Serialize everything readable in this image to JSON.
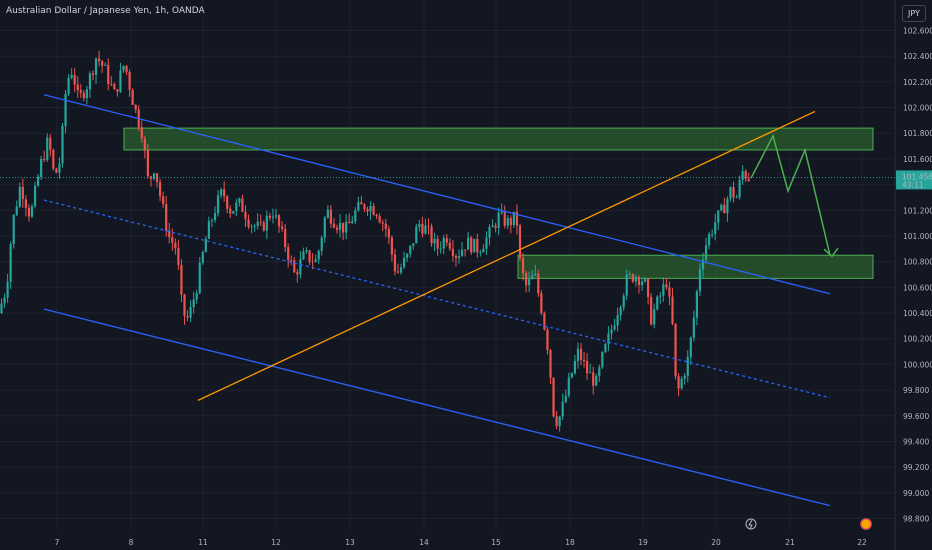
{
  "header": {
    "title": "Australian Dollar / Japanese Yen, 1h, OANDA",
    "currency": "JPY"
  },
  "price_tag": {
    "price": "101.456",
    "countdown": "43:11",
    "color": "#26a69a"
  },
  "colors": {
    "up": "#26a69a",
    "down": "#ef5350",
    "channel": "#2962ff",
    "trendline": "#ff9800",
    "zone_fill": "#2b5f2f",
    "zone_border": "#4caf50",
    "arrow": "#4caf50",
    "background": "#131722",
    "grid": "#1e222d",
    "axis_text": "#b2b5be"
  },
  "chart_data": {
    "type": "candlestick",
    "title": "Australian Dollar / Japanese Yen, 1h, OANDA",
    "y_axis": {
      "position": "right",
      "range": [
        98.7,
        102.75
      ],
      "ticks": [
        "102.600",
        "102.400",
        "102.200",
        "102.000",
        "101.800",
        "101.600",
        "101.400",
        "101.200",
        "101.000",
        "100.800",
        "100.600",
        "100.400",
        "100.200",
        "100.000",
        "99.800",
        "99.600",
        "99.400",
        "99.200",
        "99.000",
        "98.800"
      ]
    },
    "x_axis": {
      "ticks": [
        "7",
        "8",
        "11",
        "12",
        "13",
        "14",
        "15",
        "18",
        "19",
        "20",
        "21",
        "22"
      ]
    },
    "price_path": [
      [
        0,
        100.4
      ],
      [
        8,
        100.6
      ],
      [
        14,
        101.1
      ],
      [
        22,
        101.4
      ],
      [
        32,
        101.15
      ],
      [
        42,
        101.55
      ],
      [
        50,
        101.75
      ],
      [
        56,
        101.45
      ],
      [
        62,
        101.6
      ],
      [
        68,
        102.2
      ],
      [
        74,
        102.3
      ],
      [
        80,
        102.05
      ],
      [
        90,
        102.2
      ],
      [
        98,
        102.4
      ],
      [
        106,
        102.3
      ],
      [
        116,
        102.1
      ],
      [
        126,
        102.35
      ],
      [
        136,
        102.0
      ],
      [
        144,
        101.8
      ],
      [
        150,
        101.4
      ],
      [
        156,
        101.55
      ],
      [
        162,
        101.3
      ],
      [
        170,
        101.0
      ],
      [
        178,
        100.9
      ],
      [
        184,
        100.4
      ],
      [
        190,
        100.35
      ],
      [
        198,
        100.6
      ],
      [
        208,
        101.0
      ],
      [
        216,
        101.2
      ],
      [
        224,
        101.35
      ],
      [
        232,
        101.2
      ],
      [
        242,
        101.25
      ],
      [
        252,
        101.1
      ],
      [
        262,
        101.05
      ],
      [
        274,
        101.2
      ],
      [
        286,
        100.95
      ],
      [
        296,
        100.7
      ],
      [
        306,
        100.85
      ],
      [
        318,
        100.8
      ],
      [
        328,
        101.2
      ],
      [
        338,
        101.1
      ],
      [
        348,
        101.05
      ],
      [
        358,
        101.2
      ],
      [
        368,
        101.25
      ],
      [
        378,
        101.2
      ],
      [
        388,
        101.05
      ],
      [
        398,
        100.7
      ],
      [
        410,
        100.85
      ],
      [
        420,
        101.1
      ],
      [
        428,
        101.05
      ],
      [
        438,
        100.9
      ],
      [
        448,
        101.0
      ],
      [
        458,
        100.85
      ],
      [
        468,
        100.95
      ],
      [
        480,
        100.9
      ],
      [
        490,
        101.0
      ],
      [
        500,
        101.15
      ],
      [
        510,
        101.1
      ],
      [
        518,
        101.15
      ],
      [
        522,
        100.75
      ],
      [
        528,
        100.6
      ],
      [
        536,
        100.7
      ],
      [
        544,
        100.4
      ],
      [
        550,
        100.1
      ],
      [
        556,
        99.55
      ],
      [
        562,
        99.6
      ],
      [
        572,
        99.9
      ],
      [
        580,
        100.1
      ],
      [
        588,
        99.95
      ],
      [
        598,
        99.85
      ],
      [
        604,
        100.05
      ],
      [
        612,
        100.25
      ],
      [
        620,
        100.45
      ],
      [
        628,
        100.65
      ],
      [
        636,
        100.7
      ],
      [
        646,
        100.65
      ],
      [
        652,
        100.35
      ],
      [
        660,
        100.5
      ],
      [
        668,
        100.65
      ],
      [
        674,
        100.3
      ],
      [
        678,
        99.75
      ],
      [
        684,
        99.9
      ],
      [
        690,
        100.05
      ],
      [
        696,
        100.4
      ],
      [
        702,
        100.8
      ],
      [
        708,
        100.95
      ],
      [
        716,
        101.1
      ],
      [
        724,
        101.2
      ],
      [
        732,
        101.35
      ],
      [
        738,
        101.3
      ],
      [
        744,
        101.5
      ],
      [
        750,
        101.46
      ]
    ],
    "series": [
      {
        "name": "",
        "kind": "channel_upper",
        "color": "#2962ff",
        "points": [
          [
            44,
            102.1
          ],
          [
            830,
            100.55
          ]
        ]
      },
      {
        "name": "",
        "kind": "channel_mid",
        "color": "#2962ff",
        "dashed": true,
        "points": [
          [
            44,
            101.28
          ],
          [
            830,
            99.74
          ]
        ]
      },
      {
        "name": "",
        "kind": "channel_lower",
        "color": "#2962ff",
        "points": [
          [
            44,
            100.43
          ],
          [
            830,
            98.9
          ]
        ]
      },
      {
        "name": "",
        "kind": "trendline",
        "color": "#ff9800",
        "points": [
          [
            198,
            99.72
          ],
          [
            815,
            101.97
          ]
        ]
      },
      {
        "name": "",
        "kind": "zone_upper",
        "color": "#4caf50",
        "x_range": [
          124,
          873
        ],
        "y_range": [
          101.67,
          101.84
        ]
      },
      {
        "name": "",
        "kind": "zone_lower",
        "color": "#4caf50",
        "x_range": [
          518,
          873
        ],
        "y_range": [
          100.67,
          100.85
        ]
      },
      {
        "name": "",
        "kind": "projection",
        "color": "#4caf50",
        "points": [
          [
            751,
            101.45
          ],
          [
            773,
            101.78
          ],
          [
            788,
            101.35
          ],
          [
            805,
            101.67
          ],
          [
            830,
            100.85
          ]
        ]
      }
    ],
    "grid": true,
    "legend": "none"
  }
}
